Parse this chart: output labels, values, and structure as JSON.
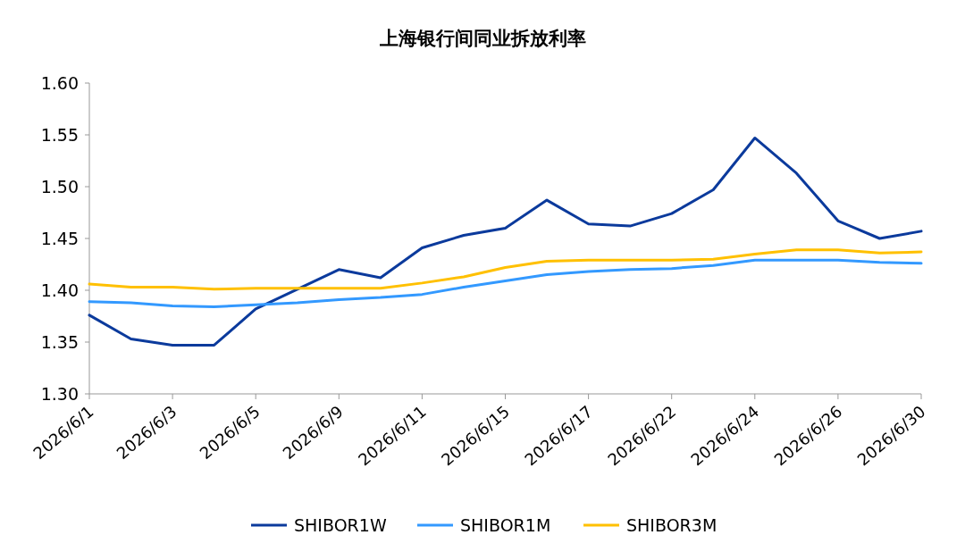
{
  "chart_data": {
    "type": "line",
    "title": "上海银行间同业拆放利率",
    "categories": [
      "2026/6/1",
      null,
      "2026/6/3",
      null,
      "2026/6/5",
      null,
      "2026/6/9",
      null,
      "2026/6/11",
      null,
      "2026/6/15",
      null,
      "2026/6/17",
      null,
      "2026/6/22",
      null,
      "2026/6/24",
      null,
      "2026/6/26",
      null,
      "2026/6/30"
    ],
    "series": [
      {
        "name": "SHIBOR1W",
        "color": "#0b3a9c",
        "values": [
          1.376,
          1.353,
          1.347,
          1.347,
          1.382,
          1.401,
          1.42,
          1.412,
          1.441,
          1.453,
          1.46,
          1.487,
          1.464,
          1.462,
          1.474,
          1.497,
          1.547,
          1.513,
          1.467,
          1.45,
          1.457
        ]
      },
      {
        "name": "SHIBOR1M",
        "color": "#3399ff",
        "values": [
          1.389,
          1.388,
          1.385,
          1.384,
          1.386,
          1.388,
          1.391,
          1.393,
          1.396,
          1.403,
          1.409,
          1.415,
          1.418,
          1.42,
          1.421,
          1.424,
          1.429,
          1.429,
          1.429,
          1.427,
          1.426
        ]
      },
      {
        "name": "SHIBOR3M",
        "color": "#ffc000",
        "values": [
          1.406,
          1.403,
          1.403,
          1.401,
          1.402,
          1.402,
          1.402,
          1.402,
          1.407,
          1.413,
          1.422,
          1.428,
          1.429,
          1.429,
          1.429,
          1.43,
          1.435,
          1.439,
          1.439,
          1.436,
          1.437
        ]
      }
    ],
    "ylim": [
      1.3,
      1.6
    ],
    "yticks": [
      {
        "value": 1.3,
        "label": "1.30"
      },
      {
        "value": 1.35,
        "label": "1.35"
      },
      {
        "value": 1.4,
        "label": "1.40"
      },
      {
        "value": 1.45,
        "label": "1.45"
      },
      {
        "value": 1.5,
        "label": "1.50"
      },
      {
        "value": 1.55,
        "label": "1.55"
      },
      {
        "value": 1.6,
        "label": "1.60"
      }
    ],
    "grid": false,
    "legend": "bottom",
    "marker": "none",
    "line_style": "solid"
  }
}
